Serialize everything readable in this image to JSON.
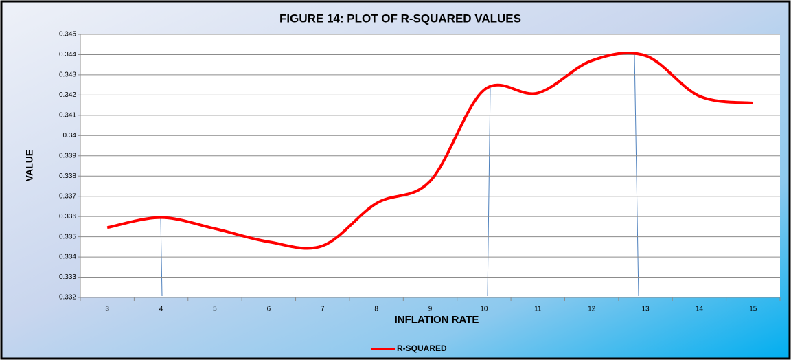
{
  "chart_data": {
    "type": "line",
    "title": "FIGURE 14: PLOT OF R-SQUARED VALUES",
    "x_label": "INFLATION RATE",
    "y_label": "VALUE",
    "categories": [
      "3",
      "4",
      "5",
      "6",
      "7",
      "8",
      "9",
      "10",
      "11",
      "12",
      "13",
      "14",
      "15"
    ],
    "series": [
      {
        "name": "R-SQUARED",
        "color": "#ff0000",
        "values": [
          0.33545,
          0.33595,
          0.3354,
          0.33475,
          0.33455,
          0.33665,
          0.33775,
          0.34225,
          0.3421,
          0.3437,
          0.34395,
          0.34195,
          0.3416
        ]
      }
    ],
    "ylim": [
      0.332,
      0.345
    ],
    "yticks": [
      0.332,
      0.333,
      0.334,
      0.335,
      0.336,
      0.337,
      0.338,
      0.339,
      0.34,
      0.341,
      0.342,
      0.343,
      0.344,
      0.345
    ],
    "grid": true,
    "smooth": true,
    "legend": "bottom"
  }
}
